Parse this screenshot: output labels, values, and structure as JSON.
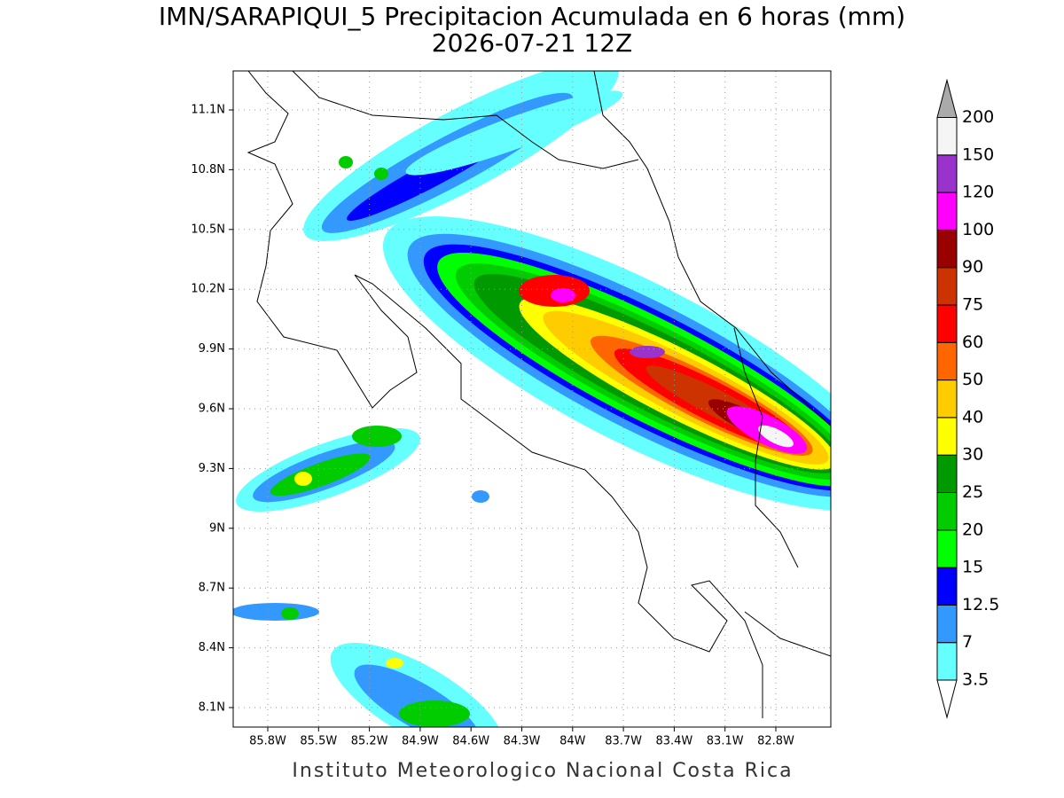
{
  "title": "IMN/SARAPIQUI_5 Precipitacion Acumulada en 6 horas (mm)",
  "subtitle": "2026-07-21 12Z",
  "map": {
    "lat_labels": [
      "11.1N",
      "10.8N",
      "10.5N",
      "10.2N",
      "9.9N",
      "9.6N",
      "9.3N",
      "9N",
      "8.7N",
      "8.4N",
      "8.1N"
    ],
    "lon_labels": [
      "85.8W",
      "85.5W",
      "85.2W",
      "84.9W",
      "84.6W",
      "84.3W",
      "84W",
      "83.7W",
      "83.4W",
      "83.1W",
      "82.8W"
    ]
  },
  "colorbar": {
    "levels": [
      3.5,
      7,
      12.5,
      15,
      20,
      25,
      30,
      40,
      50,
      60,
      75,
      90,
      100,
      120,
      150,
      200
    ],
    "colors": [
      "#66ffff",
      "#3399ff",
      "#0000ff",
      "#00ff00",
      "#00cc00",
      "#009900",
      "#ffff00",
      "#ffcc00",
      "#ff6600",
      "#ff0000",
      "#cc3300",
      "#990000",
      "#ff00ff",
      "#9933cc",
      "#f5f5f5"
    ],
    "under_color": "#ffffff",
    "over_color": "#aaaaaa"
  },
  "footer": "Instituto Meteorologico Nacional Costa Rica"
}
